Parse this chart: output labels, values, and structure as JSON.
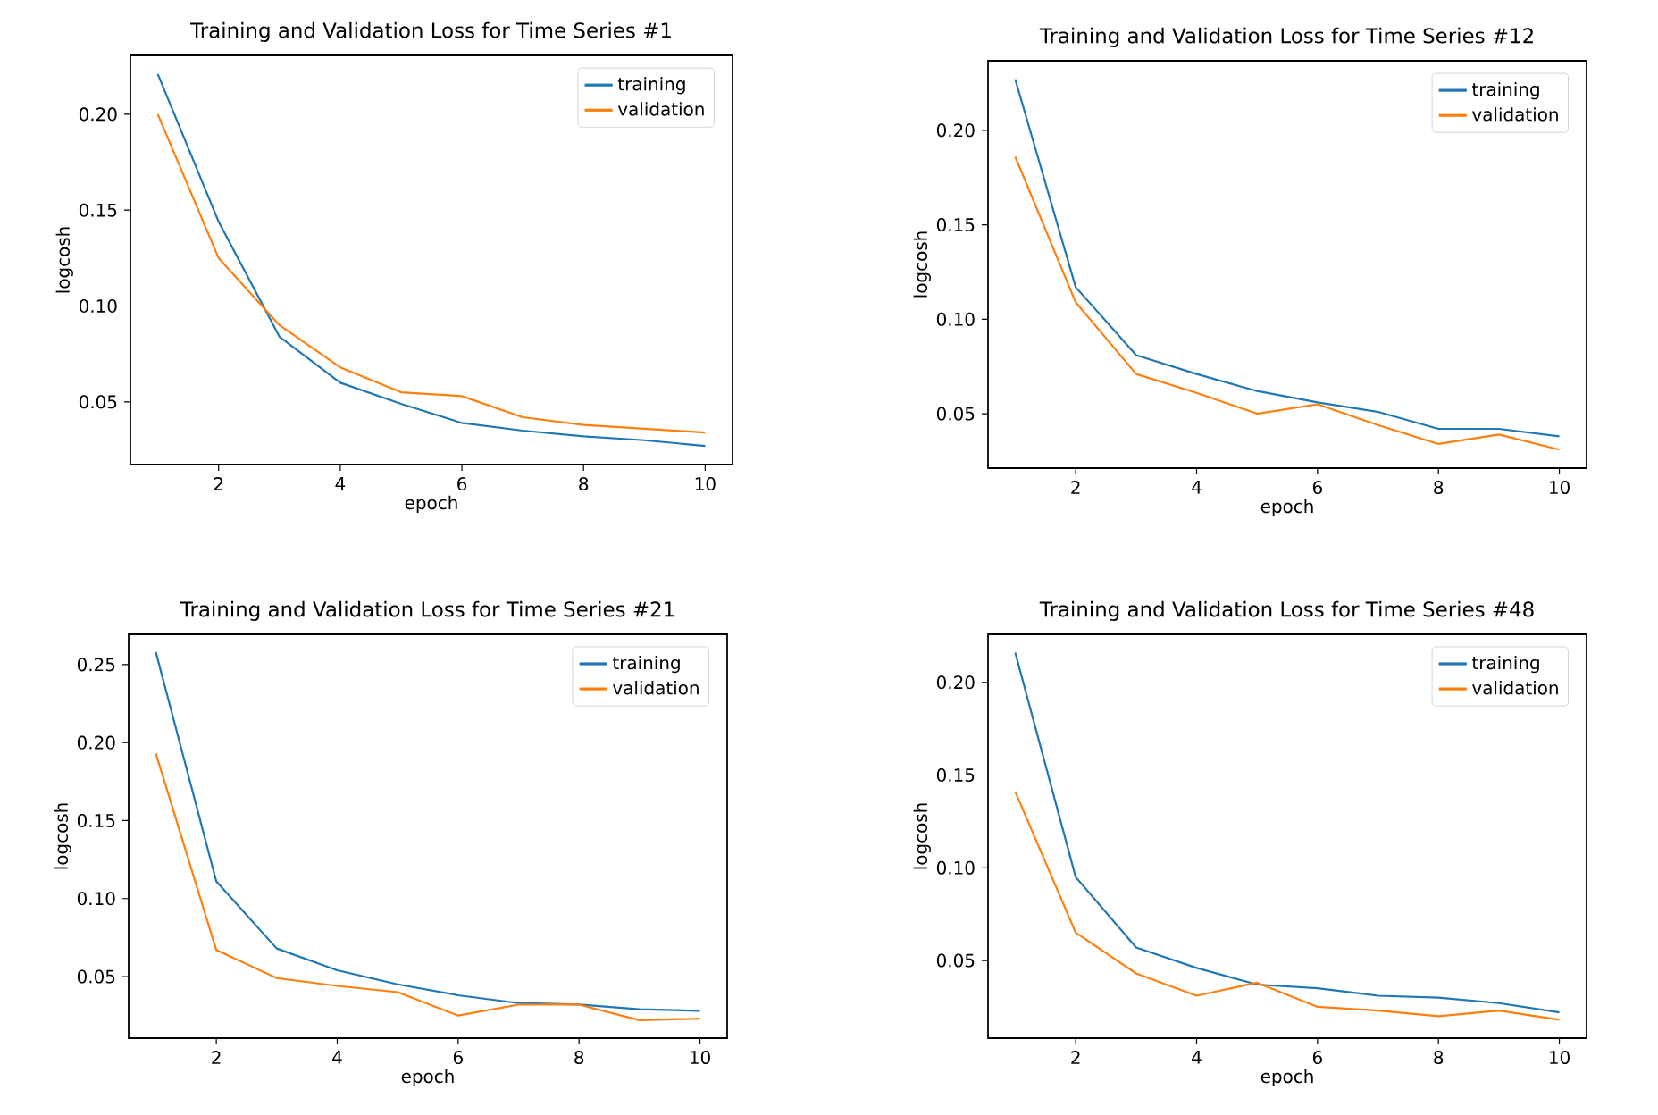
{
  "chart_data": [
    {
      "type": "line",
      "title": "Training and Validation Loss for Time Series #1",
      "xlabel": "epoch",
      "ylabel": "logcosh",
      "x": [
        1,
        2,
        3,
        4,
        5,
        6,
        7,
        8,
        9,
        10
      ],
      "xlim": [
        0.55,
        10.45
      ],
      "ylim": [
        0.0173,
        0.2307
      ],
      "xticks": [
        2,
        4,
        6,
        8,
        10
      ],
      "yticks": [
        {
          "value": 0.05,
          "label": "0.05"
        },
        {
          "value": 0.1,
          "label": "0.10"
        },
        {
          "value": 0.15,
          "label": "0.15"
        },
        {
          "value": 0.2,
          "label": "0.20"
        }
      ],
      "legend": "top right",
      "series": [
        {
          "name": "training",
          "color": "#1f77b4",
          "values": [
            0.221,
            0.144,
            0.084,
            0.06,
            0.049,
            0.039,
            0.035,
            0.032,
            0.03,
            0.027
          ]
        },
        {
          "name": "validation",
          "color": "#ff7f0e",
          "values": [
            0.2,
            0.125,
            0.09,
            0.068,
            0.055,
            0.053,
            0.042,
            0.038,
            0.036,
            0.034
          ]
        }
      ]
    },
    {
      "type": "line",
      "title": "Training and Validation Loss for Time Series #12",
      "xlabel": "epoch",
      "ylabel": "logcosh",
      "x": [
        1,
        2,
        3,
        4,
        5,
        6,
        7,
        8,
        9,
        10
      ],
      "xlim": [
        0.55,
        10.45
      ],
      "ylim": [
        0.0212,
        0.2368
      ],
      "xticks": [
        2,
        4,
        6,
        8,
        10
      ],
      "yticks": [
        {
          "value": 0.05,
          "label": "0.05"
        },
        {
          "value": 0.1,
          "label": "0.10"
        },
        {
          "value": 0.15,
          "label": "0.15"
        },
        {
          "value": 0.2,
          "label": "0.20"
        }
      ],
      "legend": "top right",
      "series": [
        {
          "name": "training",
          "color": "#1f77b4",
          "values": [
            0.227,
            0.117,
            0.081,
            0.071,
            0.062,
            0.056,
            0.051,
            0.042,
            0.042,
            0.038
          ]
        },
        {
          "name": "validation",
          "color": "#ff7f0e",
          "values": [
            0.186,
            0.109,
            0.071,
            0.061,
            0.05,
            0.055,
            0.044,
            0.034,
            0.039,
            0.031
          ]
        }
      ]
    },
    {
      "type": "line",
      "title": "Training and Validation Loss for Time Series #21",
      "xlabel": "epoch",
      "ylabel": "logcosh",
      "x": [
        1,
        2,
        3,
        4,
        5,
        6,
        7,
        8,
        9,
        10
      ],
      "xlim": [
        0.55,
        10.45
      ],
      "ylim": [
        0.0105,
        0.2694
      ],
      "xticks": [
        2,
        4,
        6,
        8,
        10
      ],
      "yticks": [
        {
          "value": 0.05,
          "label": "0.05"
        },
        {
          "value": 0.1,
          "label": "0.10"
        },
        {
          "value": 0.15,
          "label": "0.15"
        },
        {
          "value": 0.2,
          "label": "0.20"
        },
        {
          "value": 0.25,
          "label": "0.25"
        }
      ],
      "legend": "top right",
      "series": [
        {
          "name": "training",
          "color": "#1f77b4",
          "values": [
            0.258,
            0.111,
            0.068,
            0.054,
            0.045,
            0.038,
            0.033,
            0.032,
            0.029,
            0.028
          ]
        },
        {
          "name": "validation",
          "color": "#ff7f0e",
          "values": [
            0.193,
            0.067,
            0.049,
            0.044,
            0.04,
            0.025,
            0.032,
            0.032,
            0.022,
            0.023
          ]
        }
      ]
    },
    {
      "type": "line",
      "title": "Training and Validation Loss for Time Series #48",
      "xlabel": "epoch",
      "ylabel": "logcosh",
      "x": [
        1,
        2,
        3,
        4,
        5,
        6,
        7,
        8,
        9,
        10
      ],
      "xlim": [
        0.55,
        10.45
      ],
      "ylim": [
        0.0081,
        0.2259
      ],
      "xticks": [
        2,
        4,
        6,
        8,
        10
      ],
      "yticks": [
        {
          "value": 0.05,
          "label": "0.05"
        },
        {
          "value": 0.1,
          "label": "0.10"
        },
        {
          "value": 0.15,
          "label": "0.15"
        },
        {
          "value": 0.2,
          "label": "0.20"
        }
      ],
      "legend": "top right",
      "series": [
        {
          "name": "training",
          "color": "#1f77b4",
          "values": [
            0.216,
            0.095,
            0.057,
            0.046,
            0.037,
            0.035,
            0.031,
            0.03,
            0.027,
            0.022
          ]
        },
        {
          "name": "validation",
          "color": "#ff7f0e",
          "values": [
            0.141,
            0.065,
            0.043,
            0.031,
            0.038,
            0.025,
            0.023,
            0.02,
            0.023,
            0.018
          ]
        }
      ]
    }
  ]
}
